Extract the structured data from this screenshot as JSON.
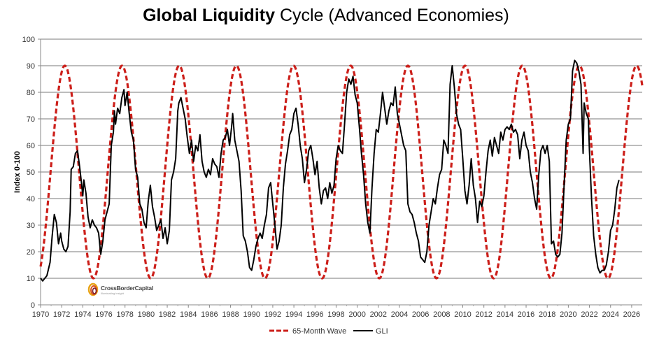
{
  "chart_data": {
    "type": "line",
    "title": {
      "bold": "Global Liquidity",
      "rest": " Cycle (Advanced Economies)"
    },
    "xlabel": "",
    "ylabel": "Index 0-100",
    "xlim": [
      1970,
      2027
    ],
    "ylim": [
      0,
      100
    ],
    "grid": true,
    "x_ticks": [
      "1970",
      "1972",
      "1974",
      "1976",
      "1978",
      "1980",
      "1982",
      "1984",
      "1986",
      "1988",
      "1990",
      "1992",
      "1994",
      "1996",
      "1998",
      "2000",
      "2002",
      "2004",
      "2006",
      "2008",
      "2010",
      "2012",
      "2014",
      "2016",
      "2018",
      "2020",
      "2022",
      "2024",
      "2026"
    ],
    "y_ticks": [
      "0",
      "10",
      "20",
      "30",
      "40",
      "50",
      "60",
      "70",
      "80",
      "90",
      "100"
    ],
    "legend_position": "bottom-center",
    "watermark": {
      "name": "CrossBorderCapital",
      "tagline": "Illuminating insight"
    },
    "series": [
      {
        "name": "65-Month Wave",
        "style": "dashed",
        "color": "#cc1f1a",
        "wave": {
          "period_months": 65,
          "center": 50,
          "amplitude": 40,
          "first_peak_year": 1972.3
        }
      },
      {
        "name": "GLI",
        "style": "solid",
        "color": "#000000",
        "points": [
          [
            1970.0,
            10
          ],
          [
            1970.2,
            9
          ],
          [
            1970.4,
            10
          ],
          [
            1970.6,
            11
          ],
          [
            1970.9,
            16
          ],
          [
            1971.1,
            26
          ],
          [
            1971.3,
            34
          ],
          [
            1971.5,
            31
          ],
          [
            1971.7,
            23
          ],
          [
            1971.9,
            27
          ],
          [
            1972.0,
            24
          ],
          [
            1972.2,
            21
          ],
          [
            1972.4,
            20
          ],
          [
            1972.6,
            22
          ],
          [
            1972.8,
            35
          ],
          [
            1972.9,
            51
          ],
          [
            1973.1,
            52
          ],
          [
            1973.3,
            57
          ],
          [
            1973.5,
            58
          ],
          [
            1973.7,
            52
          ],
          [
            1973.9,
            45
          ],
          [
            1974.0,
            41
          ],
          [
            1974.1,
            47
          ],
          [
            1974.3,
            42
          ],
          [
            1974.5,
            33
          ],
          [
            1974.7,
            29
          ],
          [
            1974.9,
            32
          ],
          [
            1975.1,
            30
          ],
          [
            1975.3,
            29
          ],
          [
            1975.5,
            27
          ],
          [
            1975.7,
            19
          ],
          [
            1975.9,
            24
          ],
          [
            1976.1,
            32
          ],
          [
            1976.3,
            35
          ],
          [
            1976.5,
            38
          ],
          [
            1976.7,
            60
          ],
          [
            1976.9,
            65
          ],
          [
            1977.0,
            73
          ],
          [
            1977.1,
            68
          ],
          [
            1977.3,
            74
          ],
          [
            1977.5,
            72
          ],
          [
            1977.7,
            78
          ],
          [
            1977.9,
            81
          ],
          [
            1978.0,
            75
          ],
          [
            1978.2,
            80
          ],
          [
            1978.4,
            72
          ],
          [
            1978.6,
            65
          ],
          [
            1978.8,
            62
          ],
          [
            1979.0,
            51
          ],
          [
            1979.2,
            48
          ],
          [
            1979.4,
            38
          ],
          [
            1979.6,
            36
          ],
          [
            1979.8,
            31
          ],
          [
            1980.0,
            29
          ],
          [
            1980.2,
            39
          ],
          [
            1980.4,
            45
          ],
          [
            1980.6,
            37
          ],
          [
            1980.8,
            33
          ],
          [
            1981.0,
            28
          ],
          [
            1981.2,
            30
          ],
          [
            1981.4,
            32
          ],
          [
            1981.6,
            25
          ],
          [
            1981.8,
            29
          ],
          [
            1982.0,
            23
          ],
          [
            1982.2,
            28
          ],
          [
            1982.4,
            47
          ],
          [
            1982.6,
            50
          ],
          [
            1982.8,
            55
          ],
          [
            1983.0,
            73
          ],
          [
            1983.1,
            76
          ],
          [
            1983.3,
            78
          ],
          [
            1983.5,
            74
          ],
          [
            1983.7,
            70
          ],
          [
            1983.9,
            63
          ],
          [
            1984.1,
            57
          ],
          [
            1984.3,
            62
          ],
          [
            1984.5,
            54
          ],
          [
            1984.7,
            60
          ],
          [
            1984.9,
            58
          ],
          [
            1985.1,
            64
          ],
          [
            1985.3,
            54
          ],
          [
            1985.5,
            50
          ],
          [
            1985.7,
            48
          ],
          [
            1985.9,
            51
          ],
          [
            1986.1,
            49
          ],
          [
            1986.3,
            55
          ],
          [
            1986.5,
            53
          ],
          [
            1986.7,
            52
          ],
          [
            1986.9,
            48
          ],
          [
            1987.1,
            57
          ],
          [
            1987.3,
            62
          ],
          [
            1987.5,
            63
          ],
          [
            1987.7,
            66
          ],
          [
            1987.9,
            60
          ],
          [
            1988.1,
            67
          ],
          [
            1988.2,
            72
          ],
          [
            1988.4,
            62
          ],
          [
            1988.6,
            58
          ],
          [
            1988.8,
            54
          ],
          [
            1989.0,
            43
          ],
          [
            1989.2,
            26
          ],
          [
            1989.4,
            24
          ],
          [
            1989.6,
            20
          ],
          [
            1989.8,
            14
          ],
          [
            1990.0,
            13
          ],
          [
            1990.2,
            17
          ],
          [
            1990.4,
            22
          ],
          [
            1990.6,
            25
          ],
          [
            1990.8,
            27
          ],
          [
            1991.0,
            25
          ],
          [
            1991.2,
            30
          ],
          [
            1991.4,
            34
          ],
          [
            1991.6,
            44
          ],
          [
            1991.8,
            46
          ],
          [
            1992.0,
            38
          ],
          [
            1992.2,
            30
          ],
          [
            1992.4,
            21
          ],
          [
            1992.6,
            24
          ],
          [
            1992.8,
            30
          ],
          [
            1993.0,
            44
          ],
          [
            1993.2,
            53
          ],
          [
            1993.4,
            58
          ],
          [
            1993.6,
            64
          ],
          [
            1993.8,
            66
          ],
          [
            1994.0,
            72
          ],
          [
            1994.2,
            74
          ],
          [
            1994.4,
            68
          ],
          [
            1994.6,
            60
          ],
          [
            1994.8,
            55
          ],
          [
            1995.0,
            46
          ],
          [
            1995.2,
            51
          ],
          [
            1995.4,
            58
          ],
          [
            1995.6,
            60
          ],
          [
            1995.8,
            55
          ],
          [
            1996.0,
            49
          ],
          [
            1996.2,
            54
          ],
          [
            1996.4,
            44
          ],
          [
            1996.6,
            38
          ],
          [
            1996.8,
            43
          ],
          [
            1997.0,
            44
          ],
          [
            1997.2,
            40
          ],
          [
            1997.4,
            46
          ],
          [
            1997.6,
            42
          ],
          [
            1997.8,
            45
          ],
          [
            1998.0,
            55
          ],
          [
            1998.2,
            60
          ],
          [
            1998.4,
            58
          ],
          [
            1998.6,
            57
          ],
          [
            1998.8,
            68
          ],
          [
            1999.0,
            80
          ],
          [
            1999.2,
            85
          ],
          [
            1999.4,
            83
          ],
          [
            1999.6,
            86
          ],
          [
            1999.8,
            79
          ],
          [
            2000.0,
            76
          ],
          [
            2000.2,
            67
          ],
          [
            2000.4,
            57
          ],
          [
            2000.6,
            49
          ],
          [
            2000.8,
            38
          ],
          [
            2001.0,
            31
          ],
          [
            2001.2,
            27
          ],
          [
            2001.4,
            44
          ],
          [
            2001.6,
            57
          ],
          [
            2001.8,
            66
          ],
          [
            2002.0,
            65
          ],
          [
            2002.2,
            72
          ],
          [
            2002.4,
            80
          ],
          [
            2002.6,
            74
          ],
          [
            2002.8,
            68
          ],
          [
            2003.0,
            73
          ],
          [
            2003.2,
            76
          ],
          [
            2003.4,
            75
          ],
          [
            2003.6,
            82
          ],
          [
            2003.8,
            72
          ],
          [
            2004.0,
            68
          ],
          [
            2004.2,
            64
          ],
          [
            2004.4,
            60
          ],
          [
            2004.6,
            58
          ],
          [
            2004.8,
            38
          ],
          [
            2005.0,
            35
          ],
          [
            2005.2,
            34
          ],
          [
            2005.4,
            31
          ],
          [
            2005.6,
            27
          ],
          [
            2005.8,
            24
          ],
          [
            2006.0,
            18
          ],
          [
            2006.2,
            17
          ],
          [
            2006.4,
            16
          ],
          [
            2006.6,
            20
          ],
          [
            2006.8,
            30
          ],
          [
            2007.0,
            35
          ],
          [
            2007.2,
            40
          ],
          [
            2007.4,
            38
          ],
          [
            2007.6,
            44
          ],
          [
            2007.8,
            49
          ],
          [
            2008.0,
            51
          ],
          [
            2008.2,
            62
          ],
          [
            2008.4,
            60
          ],
          [
            2008.6,
            57
          ],
          [
            2008.8,
            83
          ],
          [
            2009.0,
            90
          ],
          [
            2009.2,
            82
          ],
          [
            2009.4,
            72
          ],
          [
            2009.6,
            68
          ],
          [
            2009.8,
            66
          ],
          [
            2010.0,
            55
          ],
          [
            2010.2,
            43
          ],
          [
            2010.4,
            38
          ],
          [
            2010.6,
            45
          ],
          [
            2010.8,
            55
          ],
          [
            2011.0,
            45
          ],
          [
            2011.2,
            40
          ],
          [
            2011.4,
            31
          ],
          [
            2011.6,
            39
          ],
          [
            2011.8,
            37
          ],
          [
            2012.0,
            41
          ],
          [
            2012.2,
            50
          ],
          [
            2012.4,
            58
          ],
          [
            2012.6,
            62
          ],
          [
            2012.8,
            56
          ],
          [
            2013.0,
            63
          ],
          [
            2013.2,
            60
          ],
          [
            2013.4,
            57
          ],
          [
            2013.6,
            65
          ],
          [
            2013.8,
            62
          ],
          [
            2014.0,
            66
          ],
          [
            2014.2,
            67
          ],
          [
            2014.4,
            66
          ],
          [
            2014.6,
            68
          ],
          [
            2014.8,
            65
          ],
          [
            2015.0,
            66
          ],
          [
            2015.2,
            64
          ],
          [
            2015.4,
            55
          ],
          [
            2015.6,
            62
          ],
          [
            2015.8,
            65
          ],
          [
            2016.0,
            60
          ],
          [
            2016.2,
            58
          ],
          [
            2016.4,
            50
          ],
          [
            2016.6,
            46
          ],
          [
            2016.8,
            40
          ],
          [
            2017.0,
            36
          ],
          [
            2017.2,
            49
          ],
          [
            2017.4,
            58
          ],
          [
            2017.6,
            60
          ],
          [
            2017.8,
            57
          ],
          [
            2018.0,
            60
          ],
          [
            2018.2,
            54
          ],
          [
            2018.4,
            23
          ],
          [
            2018.6,
            24
          ],
          [
            2018.8,
            19
          ],
          [
            2019.0,
            18
          ],
          [
            2019.2,
            19
          ],
          [
            2019.4,
            27
          ],
          [
            2019.6,
            45
          ],
          [
            2019.8,
            62
          ],
          [
            2020.0,
            68
          ],
          [
            2020.2,
            70
          ],
          [
            2020.4,
            88
          ],
          [
            2020.6,
            92
          ],
          [
            2020.8,
            91
          ],
          [
            2021.0,
            88
          ],
          [
            2021.2,
            83
          ],
          [
            2021.4,
            57
          ],
          [
            2021.5,
            76
          ],
          [
            2021.7,
            72
          ],
          [
            2021.9,
            70
          ],
          [
            2022.0,
            58
          ],
          [
            2022.2,
            40
          ],
          [
            2022.4,
            26
          ],
          [
            2022.6,
            19
          ],
          [
            2022.8,
            14
          ],
          [
            2023.0,
            12
          ],
          [
            2023.2,
            13
          ],
          [
            2023.4,
            13
          ],
          [
            2023.6,
            15
          ],
          [
            2023.8,
            20
          ],
          [
            2024.0,
            28
          ],
          [
            2024.2,
            30
          ],
          [
            2024.4,
            36
          ],
          [
            2024.6,
            44
          ],
          [
            2024.8,
            47
          ]
        ]
      }
    ]
  },
  "legend": {
    "wave_label": "65-Month Wave",
    "gli_label": "GLI"
  }
}
